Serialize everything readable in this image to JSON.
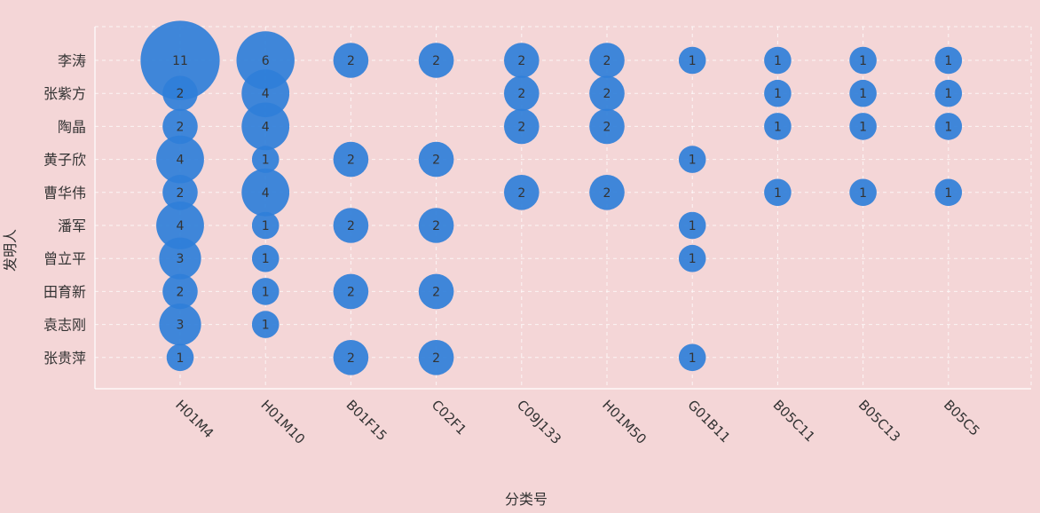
{
  "chart_data": {
    "type": "scatter",
    "xlabel": "分类号",
    "ylabel": "发明人",
    "x_categories": [
      "H01M4",
      "H01M10",
      "B01F15",
      "C02F1",
      "C09J133",
      "H01M50",
      "G01B11",
      "B05C11",
      "B05C13",
      "B05C5"
    ],
    "y_categories": [
      "李涛",
      "张紫方",
      "陶晶",
      "黄子欣",
      "曹华伟",
      "潘军",
      "曾立平",
      "田育新",
      "袁志刚",
      "张贵萍"
    ],
    "grid": true,
    "colors": {
      "bubble": "#2f7fd9",
      "background": "#f4d6d7"
    },
    "points": [
      {
        "x": "H01M4",
        "y": "李涛",
        "value": 11
      },
      {
        "x": "H01M10",
        "y": "李涛",
        "value": 6
      },
      {
        "x": "B01F15",
        "y": "李涛",
        "value": 2
      },
      {
        "x": "C02F1",
        "y": "李涛",
        "value": 2
      },
      {
        "x": "C09J133",
        "y": "李涛",
        "value": 2
      },
      {
        "x": "H01M50",
        "y": "李涛",
        "value": 2
      },
      {
        "x": "G01B11",
        "y": "李涛",
        "value": 1
      },
      {
        "x": "B05C11",
        "y": "李涛",
        "value": 1
      },
      {
        "x": "B05C13",
        "y": "李涛",
        "value": 1
      },
      {
        "x": "B05C5",
        "y": "李涛",
        "value": 1
      },
      {
        "x": "H01M4",
        "y": "张紫方",
        "value": 2
      },
      {
        "x": "H01M10",
        "y": "张紫方",
        "value": 4
      },
      {
        "x": "C09J133",
        "y": "张紫方",
        "value": 2
      },
      {
        "x": "H01M50",
        "y": "张紫方",
        "value": 2
      },
      {
        "x": "B05C11",
        "y": "张紫方",
        "value": 1
      },
      {
        "x": "B05C13",
        "y": "张紫方",
        "value": 1
      },
      {
        "x": "B05C5",
        "y": "张紫方",
        "value": 1
      },
      {
        "x": "H01M4",
        "y": "陶晶",
        "value": 2
      },
      {
        "x": "H01M10",
        "y": "陶晶",
        "value": 4
      },
      {
        "x": "C09J133",
        "y": "陶晶",
        "value": 2
      },
      {
        "x": "H01M50",
        "y": "陶晶",
        "value": 2
      },
      {
        "x": "B05C11",
        "y": "陶晶",
        "value": 1
      },
      {
        "x": "B05C13",
        "y": "陶晶",
        "value": 1
      },
      {
        "x": "B05C5",
        "y": "陶晶",
        "value": 1
      },
      {
        "x": "H01M4",
        "y": "黄子欣",
        "value": 4
      },
      {
        "x": "H01M10",
        "y": "黄子欣",
        "value": 1
      },
      {
        "x": "B01F15",
        "y": "黄子欣",
        "value": 2
      },
      {
        "x": "C02F1",
        "y": "黄子欣",
        "value": 2
      },
      {
        "x": "G01B11",
        "y": "黄子欣",
        "value": 1
      },
      {
        "x": "H01M4",
        "y": "曹华伟",
        "value": 2
      },
      {
        "x": "H01M10",
        "y": "曹华伟",
        "value": 4
      },
      {
        "x": "C09J133",
        "y": "曹华伟",
        "value": 2
      },
      {
        "x": "H01M50",
        "y": "曹华伟",
        "value": 2
      },
      {
        "x": "B05C11",
        "y": "曹华伟",
        "value": 1
      },
      {
        "x": "B05C13",
        "y": "曹华伟",
        "value": 1
      },
      {
        "x": "B05C5",
        "y": "曹华伟",
        "value": 1
      },
      {
        "x": "H01M4",
        "y": "潘军",
        "value": 4
      },
      {
        "x": "H01M10",
        "y": "潘军",
        "value": 1
      },
      {
        "x": "B01F15",
        "y": "潘军",
        "value": 2
      },
      {
        "x": "C02F1",
        "y": "潘军",
        "value": 2
      },
      {
        "x": "G01B11",
        "y": "潘军",
        "value": 1
      },
      {
        "x": "H01M4",
        "y": "曾立平",
        "value": 3
      },
      {
        "x": "H01M10",
        "y": "曾立平",
        "value": 1
      },
      {
        "x": "G01B11",
        "y": "曾立平",
        "value": 1
      },
      {
        "x": "H01M4",
        "y": "田育新",
        "value": 2
      },
      {
        "x": "H01M10",
        "y": "田育新",
        "value": 1
      },
      {
        "x": "B01F15",
        "y": "田育新",
        "value": 2
      },
      {
        "x": "C02F1",
        "y": "田育新",
        "value": 2
      },
      {
        "x": "H01M4",
        "y": "袁志刚",
        "value": 3
      },
      {
        "x": "H01M10",
        "y": "袁志刚",
        "value": 1
      },
      {
        "x": "H01M4",
        "y": "张贵萍",
        "value": 1
      },
      {
        "x": "B01F15",
        "y": "张贵萍",
        "value": 2
      },
      {
        "x": "C02F1",
        "y": "张贵萍",
        "value": 2
      },
      {
        "x": "G01B11",
        "y": "张贵萍",
        "value": 1
      }
    ]
  }
}
